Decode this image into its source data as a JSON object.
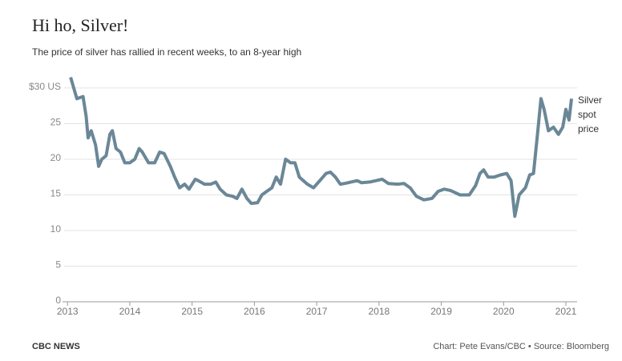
{
  "chart_data": {
    "type": "line",
    "title": "Hi ho, Silver!",
    "subtitle": "The price of silver has rallied in recent weeks, to an 8-year high",
    "source": "Chart: Pete Evans/CBC • Source: Bloomberg",
    "brand": "CBC NEWS",
    "x": [
      2013.05,
      2013.1,
      2013.15,
      2013.25,
      2013.3,
      2013.33,
      2013.38,
      2013.45,
      2013.5,
      2013.55,
      2013.62,
      2013.68,
      2013.72,
      2013.78,
      2013.85,
      2013.92,
      2014.0,
      2014.08,
      2014.15,
      2014.2,
      2014.3,
      2014.4,
      2014.48,
      2014.55,
      2014.65,
      2014.72,
      2014.8,
      2014.88,
      2014.95,
      2015.05,
      2015.1,
      2015.2,
      2015.3,
      2015.38,
      2015.45,
      2015.55,
      2015.65,
      2015.72,
      2015.8,
      2015.88,
      2015.95,
      2016.05,
      2016.12,
      2016.2,
      2016.28,
      2016.35,
      2016.42,
      2016.5,
      2016.58,
      2016.65,
      2016.72,
      2016.85,
      2016.95,
      2017.05,
      2017.15,
      2017.22,
      2017.3,
      2017.38,
      2017.45,
      2017.55,
      2017.65,
      2017.72,
      2017.85,
      2017.95,
      2018.05,
      2018.15,
      2018.3,
      2018.4,
      2018.5,
      2018.6,
      2018.72,
      2018.85,
      2018.95,
      2019.05,
      2019.15,
      2019.3,
      2019.45,
      2019.55,
      2019.62,
      2019.68,
      2019.75,
      2019.85,
      2019.95,
      2020.05,
      2020.12,
      2020.18,
      2020.25,
      2020.35,
      2020.42,
      2020.48,
      2020.55,
      2020.6,
      2020.65,
      2020.72,
      2020.8,
      2020.88,
      2020.95,
      2021.0,
      2021.05,
      2021.09
    ],
    "series": [
      {
        "name": "Silver spot price",
        "color": "#6a8797",
        "values": [
          31.5,
          30,
          28.5,
          28.8,
          26,
          23,
          24,
          22,
          19,
          20,
          20.5,
          23.5,
          24,
          21.5,
          21,
          19.5,
          19.5,
          20,
          21.5,
          21,
          19.5,
          19.5,
          21,
          20.8,
          19,
          17.5,
          16,
          16.5,
          15.8,
          17.2,
          17,
          16.5,
          16.5,
          16.8,
          15.8,
          15,
          14.8,
          14.5,
          15.8,
          14.5,
          13.8,
          13.9,
          15,
          15.5,
          16,
          17.5,
          16.5,
          20,
          19.5,
          19.5,
          17.5,
          16.5,
          16,
          17,
          18,
          18.2,
          17.5,
          16.5,
          16.6,
          16.8,
          17,
          16.7,
          16.8,
          17,
          17.2,
          16.6,
          16.5,
          16.6,
          16,
          14.8,
          14.3,
          14.5,
          15.5,
          15.8,
          15.6,
          15,
          15,
          16.3,
          18,
          18.5,
          17.5,
          17.5,
          17.8,
          18,
          17,
          12,
          15,
          16,
          17.8,
          18,
          24,
          28.5,
          27,
          24,
          24.5,
          23.5,
          24.5,
          27,
          25.5,
          28.5
        ]
      }
    ],
    "xlim": [
      2012.92,
      2021.18
    ],
    "xticks": [
      2013,
      2014,
      2015,
      2016,
      2017,
      2018,
      2019,
      2020,
      2021
    ],
    "ylim": [
      0,
      31.9
    ],
    "yticks": [
      0,
      5,
      10,
      15,
      20,
      25,
      {
        "value": 30,
        "label": "$30 US"
      }
    ],
    "grid": true
  }
}
